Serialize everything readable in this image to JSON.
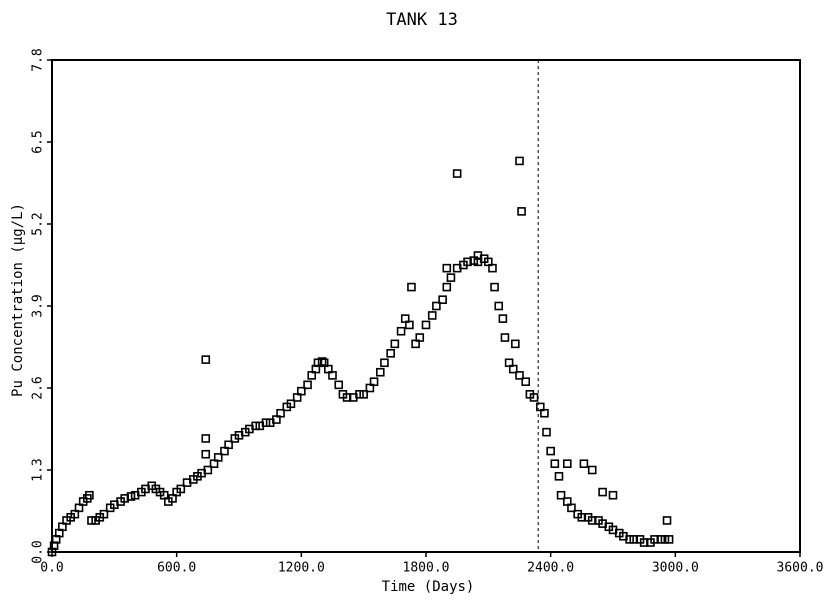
{
  "chart_data": {
    "type": "scatter",
    "title": "TANK 13",
    "x_label": "Time (Days)",
    "y_label": "Pu Concentration (µg/L)",
    "xlim": [
      0,
      3600
    ],
    "ylim": [
      0,
      7.8
    ],
    "xticks": [
      {
        "value": 0,
        "label": "0.0"
      },
      {
        "value": 600,
        "label": "600.0"
      },
      {
        "value": 1200,
        "label": "1200.0"
      },
      {
        "value": 1800,
        "label": "1800.0"
      },
      {
        "value": 2400,
        "label": "2400.0"
      },
      {
        "value": 3000,
        "label": "3000.0"
      },
      {
        "value": 3600,
        "label": "3600.0"
      }
    ],
    "yticks": [
      {
        "value": 0,
        "label": "0.0"
      },
      1.3,
      2.6,
      3.9,
      5.2,
      6.5,
      7.8
    ],
    "reference_line_x": 2340,
    "color": "#000000",
    "x": [
      0,
      10,
      20,
      35,
      50,
      70,
      90,
      110,
      130,
      150,
      170,
      180,
      190,
      210,
      230,
      250,
      280,
      300,
      330,
      350,
      380,
      400,
      430,
      450,
      480,
      500,
      520,
      540,
      560,
      580,
      600,
      620,
      650,
      680,
      700,
      720,
      750,
      780,
      800,
      830,
      850,
      880,
      900,
      930,
      950,
      980,
      1000,
      1030,
      1050,
      1080,
      1100,
      1130,
      1150,
      1180,
      1200,
      1230,
      1250,
      1270,
      1280,
      1300,
      1310,
      1330,
      1350,
      1380,
      1400,
      1420,
      1450,
      1480,
      1500,
      1530,
      1550,
      1580,
      1600,
      1630,
      1650,
      1680,
      1700,
      1720,
      1750,
      1770,
      1800,
      1830,
      1850,
      1880,
      1900,
      1920,
      1950,
      1980,
      2000,
      2030,
      2050,
      2080,
      2100,
      2120,
      2130,
      2150,
      2170,
      2180,
      2200,
      2220,
      2250,
      2280,
      2300,
      2320,
      2350,
      2370,
      2380,
      2400,
      2420,
      2440,
      2450,
      2480,
      2500,
      2530,
      2550,
      2580,
      2600,
      2630,
      2650,
      2680,
      2700,
      2730,
      2750,
      2780,
      2800,
      2830,
      2850,
      2880,
      2900,
      2930,
      2950,
      2970,
      740,
      740,
      740,
      1950,
      2250,
      2260,
      1730,
      2480,
      2560,
      2600,
      2650,
      2700,
      2960,
      1900,
      2050,
      2230
    ],
    "values": [
      0.0,
      0.1,
      0.2,
      0.3,
      0.4,
      0.5,
      0.55,
      0.6,
      0.7,
      0.8,
      0.85,
      0.9,
      0.5,
      0.5,
      0.55,
      0.6,
      0.7,
      0.75,
      0.8,
      0.85,
      0.88,
      0.9,
      0.95,
      1.0,
      1.05,
      1.0,
      0.95,
      0.9,
      0.8,
      0.85,
      0.95,
      1.0,
      1.1,
      1.15,
      1.2,
      1.25,
      1.3,
      1.4,
      1.5,
      1.6,
      1.7,
      1.8,
      1.85,
      1.9,
      1.95,
      2.0,
      2.0,
      2.05,
      2.05,
      2.1,
      2.2,
      2.3,
      2.35,
      2.45,
      2.55,
      2.65,
      2.8,
      2.9,
      3.0,
      3.02,
      3.0,
      2.9,
      2.8,
      2.65,
      2.5,
      2.45,
      2.45,
      2.5,
      2.5,
      2.6,
      2.7,
      2.85,
      3.0,
      3.15,
      3.3,
      3.5,
      3.7,
      3.6,
      3.3,
      3.4,
      3.6,
      3.75,
      3.9,
      4.0,
      4.2,
      4.35,
      4.5,
      4.55,
      4.6,
      4.62,
      4.6,
      4.65,
      4.6,
      4.5,
      4.2,
      3.9,
      3.7,
      3.4,
      3.0,
      2.9,
      2.8,
      2.7,
      2.5,
      2.45,
      2.3,
      2.2,
      1.9,
      1.6,
      1.4,
      1.2,
      0.9,
      0.8,
      0.7,
      0.6,
      0.55,
      0.55,
      0.5,
      0.5,
      0.45,
      0.4,
      0.35,
      0.3,
      0.25,
      0.2,
      0.2,
      0.2,
      0.15,
      0.15,
      0.2,
      0.2,
      0.2,
      0.2,
      3.05,
      1.8,
      1.55,
      6.0,
      6.2,
      5.4,
      4.2,
      1.4,
      1.4,
      1.3,
      0.95,
      0.9,
      0.5,
      4.5,
      4.7,
      3.3
    ]
  }
}
